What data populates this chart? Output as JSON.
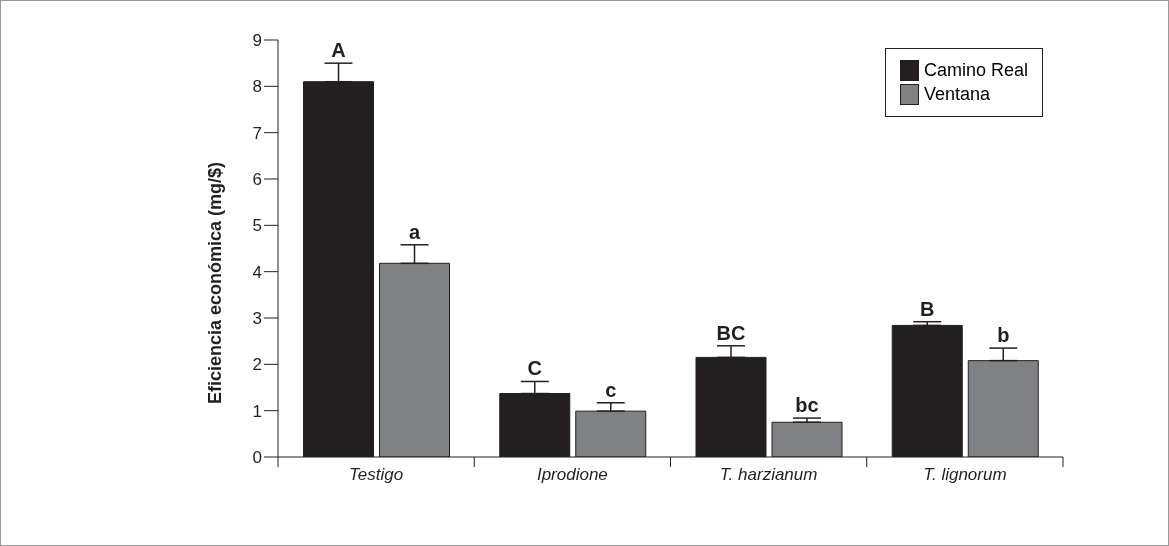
{
  "chart_data": {
    "type": "bar",
    "ylabel": "Eficiencia económica (mg/$)",
    "categories": [
      "Testigo",
      "Iprodione",
      "T. harzianum",
      "T. lignorum"
    ],
    "series": [
      {
        "name": "Camino Real",
        "color": "#231f20",
        "values": [
          8.1,
          1.37,
          2.15,
          2.84
        ],
        "errors": [
          [
            8.1,
            8.5
          ],
          [
            1.37,
            1.63
          ],
          [
            2.15,
            2.4
          ],
          [
            2.84,
            2.92
          ]
        ]
      },
      {
        "name": "Ventana",
        "color": "#808184",
        "values": [
          4.18,
          0.99,
          0.75,
          2.08
        ],
        "errors": [
          [
            4.18,
            4.58
          ],
          [
            0.99,
            1.17
          ],
          [
            0.75,
            0.84
          ],
          [
            2.08,
            2.35
          ]
        ]
      }
    ],
    "ylim": [
      0,
      9
    ],
    "yticks": [
      0,
      1,
      2,
      3,
      4,
      5,
      6,
      7,
      8,
      9
    ],
    "legend": "top right",
    "annotations": [
      "A",
      "a",
      "C",
      "c",
      "BC",
      "bc",
      "B",
      "b"
    ]
  }
}
